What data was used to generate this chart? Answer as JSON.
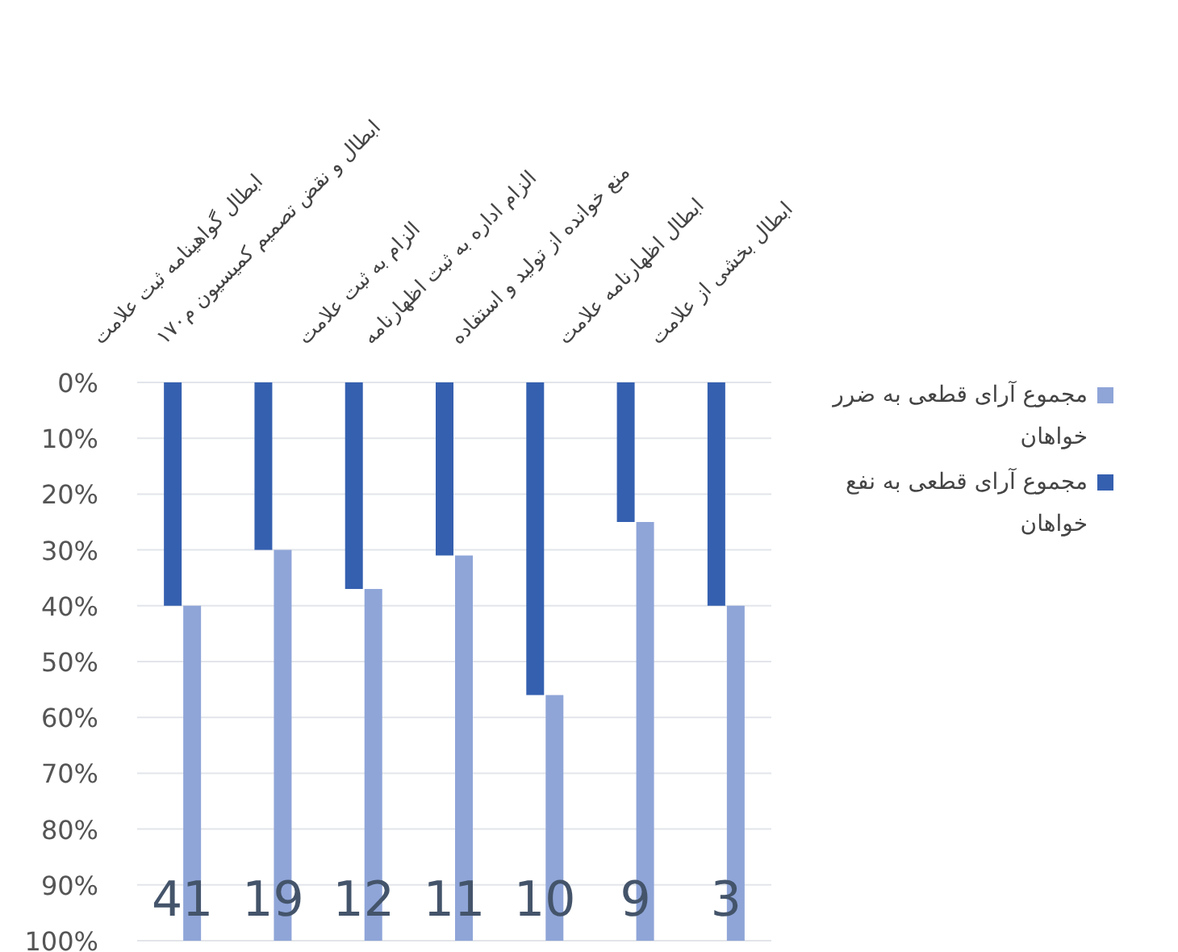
{
  "chart_data": {
    "type": "bar",
    "categories": [
      "ابطال گواهینامه ثبت علامت",
      "ابطال و نقض تصمیم کمیسیون م۱۷۰",
      "الزام به ثبت علامت",
      "الزام اداره به ثبت اظهارنامه",
      "منع خوانده از تولید و استفاده",
      "ابطال اظهارنامه علامت",
      "ابطال بخشی از علامت"
    ],
    "series": [
      {
        "name": "مجموع آرای قطعی به نفع خواهان",
        "color": "#3560b0",
        "values": [
          40,
          30,
          37,
          31,
          56,
          25,
          40
        ]
      },
      {
        "name": "مجموع آرای قطعی به ضرر خواهان",
        "color": "#8fa5d8",
        "base": [
          40,
          30,
          37,
          31,
          56,
          25,
          40
        ],
        "values": [
          60,
          70,
          63,
          69,
          44,
          75,
          60
        ]
      }
    ],
    "ylim": [
      100,
      0
    ],
    "yticks": [
      {
        "value": 0,
        "label": "0%"
      },
      {
        "value": 10,
        "label": "10%"
      },
      {
        "value": 20,
        "label": "20%"
      },
      {
        "value": 30,
        "label": "30%"
      },
      {
        "value": 40,
        "label": "40%"
      },
      {
        "value": 50,
        "label": "50%"
      },
      {
        "value": 60,
        "label": "60%"
      },
      {
        "value": 70,
        "label": "70%"
      },
      {
        "value": 80,
        "label": "80%"
      },
      {
        "value": 90,
        "label": "90%"
      },
      {
        "value": 100,
        "label": "100%"
      }
    ],
    "grid": "y",
    "legend": "right",
    "annotations": [
      "41",
      "19",
      "12",
      "11",
      "10",
      "9",
      "3"
    ]
  }
}
